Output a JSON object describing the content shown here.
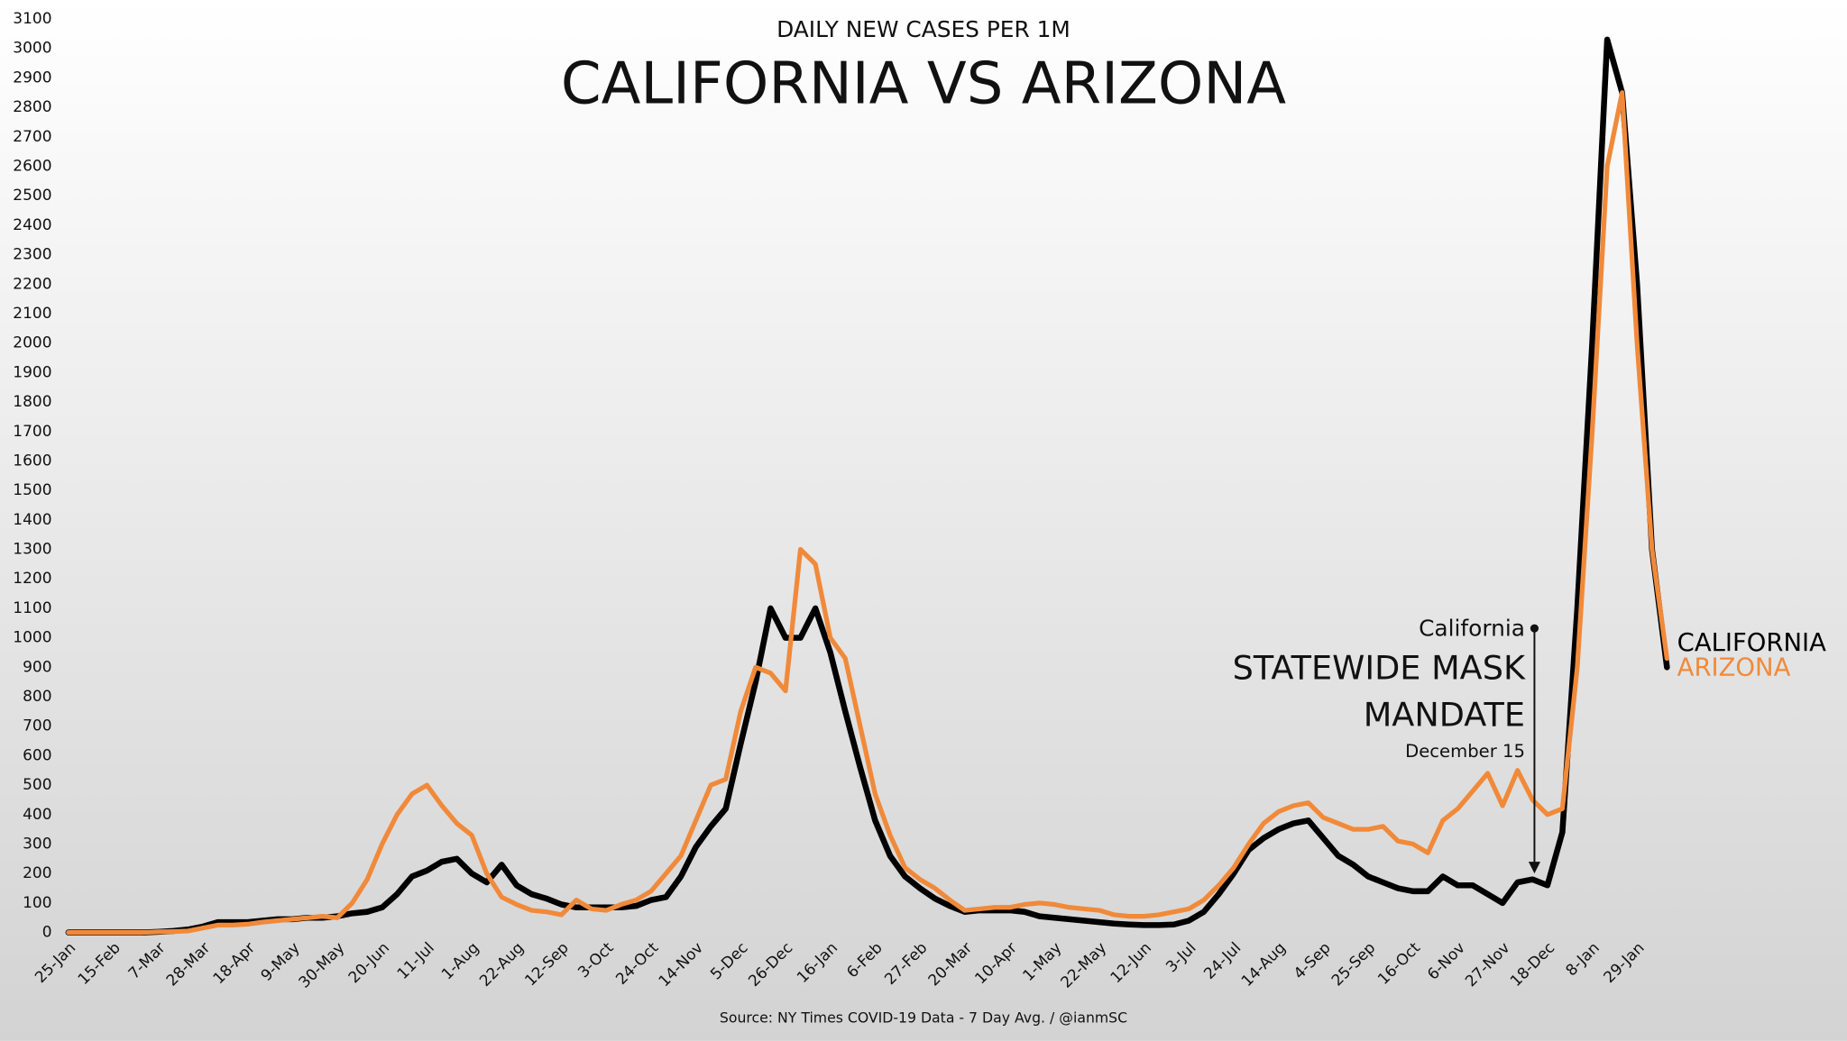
{
  "chart_data": {
    "type": "line",
    "subtitle": "DAILY NEW CASES PER 1M",
    "title": "CALIFORNIA VS ARIZONA",
    "source": "Source: NY Times COVID-19 Data - 7 Day Avg. / @ianmSC",
    "annotations": [
      "California",
      "STATEWIDE MASK",
      "MANDATE",
      "December 15"
    ],
    "categories": [
      "25-Jan",
      null,
      null,
      "15-Feb",
      null,
      null,
      "7-Mar",
      null,
      null,
      "28-Mar",
      null,
      null,
      "18-Apr",
      null,
      null,
      "9-May",
      null,
      null,
      "30-May",
      null,
      null,
      "20-Jun",
      null,
      null,
      "11-Jul",
      null,
      null,
      "1-Aug",
      null,
      null,
      "22-Aug",
      null,
      null,
      "12-Sep",
      null,
      null,
      "3-Oct",
      null,
      null,
      "24-Oct",
      null,
      null,
      "14-Nov",
      null,
      null,
      "5-Dec",
      null,
      null,
      "26-Dec",
      null,
      null,
      "16-Jan",
      null,
      null,
      "6-Feb",
      null,
      null,
      "27-Feb",
      null,
      null,
      "20-Mar",
      null,
      null,
      "10-Apr",
      null,
      null,
      "1-May",
      null,
      null,
      "22-May",
      null,
      null,
      "12-Jun",
      null,
      null,
      "3-Jul",
      null,
      null,
      "24-Jul",
      null,
      null,
      "14-Aug",
      null,
      null,
      "4-Sep",
      null,
      null,
      "25-Sep",
      null,
      null,
      "16-Oct",
      null,
      null,
      "6-Nov",
      null,
      null,
      "27-Nov",
      null,
      null,
      "18-Dec",
      null,
      null,
      "8-Jan",
      null,
      null,
      "29-Jan",
      null,
      null
    ],
    "series": [
      {
        "name": "CALIFORNIA",
        "color": "#000000",
        "values": [
          0,
          0,
          0,
          0,
          0,
          0,
          2,
          5,
          10,
          20,
          35,
          35,
          35,
          40,
          45,
          45,
          50,
          50,
          55,
          65,
          70,
          85,
          130,
          190,
          210,
          240,
          250,
          200,
          170,
          230,
          160,
          130,
          115,
          95,
          85,
          85,
          85,
          85,
          90,
          110,
          120,
          190,
          290,
          360,
          420,
          640,
          850,
          1100,
          1000,
          1000,
          1100,
          950,
          750,
          560,
          380,
          260,
          190,
          150,
          115,
          90,
          70,
          75,
          75,
          75,
          70,
          55,
          50,
          45,
          40,
          35,
          30,
          27,
          25,
          25,
          27,
          40,
          70,
          130,
          200,
          280,
          320,
          350,
          370,
          380,
          320,
          260,
          230,
          190,
          170,
          150,
          140,
          140,
          190,
          160,
          160,
          130,
          100,
          170,
          180,
          160,
          340,
          1100,
          2000,
          3030,
          2850,
          2200,
          1300,
          900
        ]
      },
      {
        "name": "ARIZONA",
        "color": "#f08a3a",
        "values": [
          0,
          0,
          0,
          0,
          0,
          0,
          2,
          3,
          5,
          15,
          25,
          25,
          28,
          35,
          40,
          45,
          50,
          55,
          50,
          100,
          180,
          300,
          400,
          470,
          500,
          430,
          370,
          330,
          200,
          120,
          95,
          75,
          70,
          60,
          110,
          80,
          75,
          95,
          110,
          140,
          200,
          260,
          380,
          500,
          520,
          750,
          900,
          880,
          820,
          1300,
          1250,
          1000,
          930,
          700,
          470,
          330,
          220,
          180,
          150,
          110,
          75,
          80,
          85,
          85,
          95,
          100,
          95,
          85,
          80,
          75,
          60,
          55,
          55,
          60,
          70,
          80,
          110,
          160,
          220,
          300,
          370,
          410,
          430,
          440,
          390,
          370,
          350,
          350,
          360,
          310,
          300,
          270,
          380,
          420,
          480,
          540,
          430,
          550,
          450,
          400,
          420,
          900,
          1700,
          2600,
          2850,
          2000,
          1300,
          930
        ]
      }
    ],
    "ylim": [
      0,
      3100
    ],
    "yticks": [
      0,
      100,
      200,
      300,
      400,
      500,
      600,
      700,
      800,
      900,
      1000,
      1100,
      1200,
      1300,
      1400,
      1500,
      1600,
      1700,
      1800,
      1900,
      2000,
      2100,
      2200,
      2300,
      2400,
      2500,
      2600,
      2700,
      2800,
      2900,
      3000,
      3100
    ],
    "grid": false
  }
}
